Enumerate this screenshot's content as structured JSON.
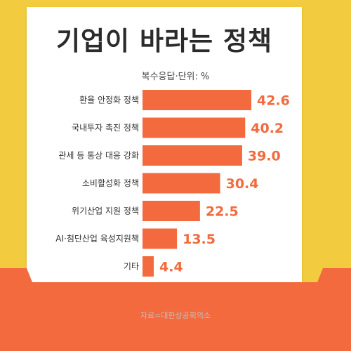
{
  "title": "기업이 바라는 정책",
  "subtitle": "복수응답·단위: %",
  "source": "자료=대한상공회의소",
  "colors": {
    "background": "#f2cc3e",
    "bar": "#f26a3d",
    "value_label": "#f26a3d",
    "folder": "#f26a3d",
    "title": "#2b2b2b"
  },
  "chart_data": {
    "type": "bar",
    "orientation": "horizontal",
    "categories": [
      "환율 안정화 정책",
      "국내투자 촉진 정책",
      "관세 등 통상 대응 강화",
      "소비활성화 정책",
      "위기산업 지원 정책",
      "AI·첨단산업 육성지원책",
      "기타"
    ],
    "values": [
      42.6,
      40.2,
      39.0,
      30.4,
      22.5,
      13.5,
      4.4
    ],
    "value_labels": [
      "42.6",
      "40.2",
      "39.0",
      "30.4",
      "22.5",
      "13.5",
      "4.4"
    ],
    "xlim": [
      0,
      42.6
    ],
    "grid": false,
    "legend": "none"
  }
}
